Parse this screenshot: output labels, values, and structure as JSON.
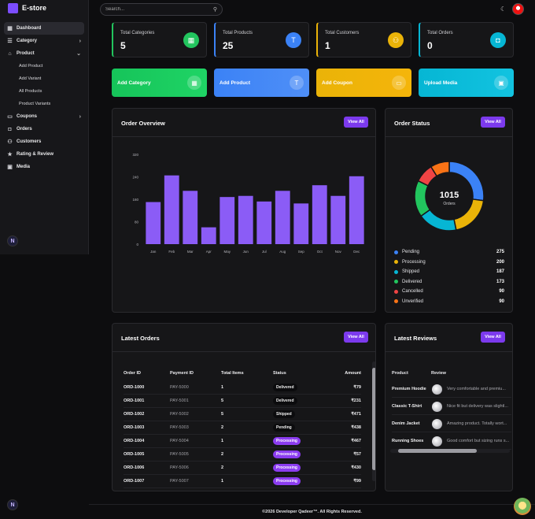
{
  "app": {
    "brand": "E-store"
  },
  "header": {
    "search_placeholder": "Search..."
  },
  "sidebar": {
    "items": [
      {
        "label": "Dashboard",
        "icon": "grid-icon",
        "active": true
      },
      {
        "label": "Category",
        "icon": "list-icon",
        "chevron": ">"
      },
      {
        "label": "Product",
        "icon": "tag-icon",
        "chevron": "v"
      },
      {
        "label": "Coupons",
        "icon": "ticket-icon",
        "chevron": ">"
      },
      {
        "label": "Orders",
        "icon": "bag-icon"
      },
      {
        "label": "Customers",
        "icon": "user-icon"
      },
      {
        "label": "Rating & Review",
        "icon": "star-icon"
      },
      {
        "label": "Media",
        "icon": "image-icon"
      }
    ],
    "product_sub": [
      "Add Product",
      "Add Variant",
      "All Products",
      "Product Variants"
    ],
    "avatar_letter": "N"
  },
  "stats": [
    {
      "label": "Total Categories",
      "value": "5",
      "color": "#22c55e",
      "icon": "grid-icon"
    },
    {
      "label": "Total Products",
      "value": "25",
      "color": "#3b82f6",
      "icon": "shirt-icon"
    },
    {
      "label": "Total Customers",
      "value": "1",
      "color": "#eab308",
      "icon": "user-icon"
    },
    {
      "label": "Total Orders",
      "value": "0",
      "color": "#06b6d4",
      "icon": "bag-icon"
    }
  ],
  "actions": [
    {
      "label": "Add Category",
      "color_from": "#16c45a",
      "color_to": "#1fd465",
      "icon": "grid-icon"
    },
    {
      "label": "Add Product",
      "color_from": "#3b82f6",
      "color_to": "#4f8ff7",
      "icon": "shirt-icon"
    },
    {
      "label": "Add Coupon",
      "color_from": "#eab308",
      "color_to": "#f5b50a",
      "icon": "ticket-icon"
    },
    {
      "label": "Upload Media",
      "color_from": "#06b6d4",
      "color_to": "#12c3e0",
      "icon": "image-icon"
    }
  ],
  "order_overview": {
    "title": "Order Overview",
    "button": "View All",
    "chart_data": {
      "type": "bar",
      "categories": [
        "Jan",
        "Feb",
        "Mar",
        "Apr",
        "May",
        "Jun",
        "Jul",
        "Aug",
        "Sep",
        "Oct",
        "Nov",
        "Dec"
      ],
      "values": [
        150,
        245,
        190,
        60,
        168,
        172,
        152,
        190,
        145,
        210,
        172,
        242
      ],
      "yticks": [
        "0",
        "80",
        "160",
        "240",
        "320"
      ],
      "ylim": [
        0,
        320
      ],
      "color": "#8b5cf6"
    }
  },
  "order_status": {
    "title": "Order Status",
    "button": "View All",
    "total": "1015",
    "total_label": "Orders",
    "chart_data": {
      "type": "pie",
      "categories": [
        "Pending",
        "Processing",
        "Shipped",
        "Delivered",
        "Cancelled",
        "Unverified"
      ],
      "values": [
        275,
        200,
        187,
        173,
        90,
        90
      ],
      "colors": [
        "#3b82f6",
        "#eab308",
        "#06b6d4",
        "#22c55e",
        "#ef4444",
        "#f97316"
      ]
    }
  },
  "latest_orders": {
    "title": "Latest Orders",
    "button": "View All",
    "headers": [
      "Order ID",
      "Payment ID",
      "Total Items",
      "Status",
      "Amount"
    ],
    "rows": [
      {
        "id": "ORD-1000",
        "pay": "PAY-5000",
        "items": "1",
        "status": "Delivered",
        "style": "dark",
        "amount": "₹79"
      },
      {
        "id": "ORD-1001",
        "pay": "PAY-5001",
        "items": "5",
        "status": "Delivered",
        "style": "dark",
        "amount": "₹231"
      },
      {
        "id": "ORD-1002",
        "pay": "PAY-5002",
        "items": "5",
        "status": "Shipped",
        "style": "dark",
        "amount": "₹471"
      },
      {
        "id": "ORD-1003",
        "pay": "PAY-5003",
        "items": "2",
        "status": "Pending",
        "style": "dark",
        "amount": "₹438"
      },
      {
        "id": "ORD-1004",
        "pay": "PAY-5004",
        "items": "1",
        "status": "Processing",
        "style": "purple",
        "amount": "₹467"
      },
      {
        "id": "ORD-1005",
        "pay": "PAY-5005",
        "items": "2",
        "status": "Processing",
        "style": "purple",
        "amount": "₹57"
      },
      {
        "id": "ORD-1006",
        "pay": "PAY-5006",
        "items": "2",
        "status": "Processing",
        "style": "purple",
        "amount": "₹430"
      },
      {
        "id": "ORD-1007",
        "pay": "PAY-5007",
        "items": "1",
        "status": "Processing",
        "style": "purple",
        "amount": "₹99"
      }
    ]
  },
  "latest_reviews": {
    "title": "Latest Reviews",
    "button": "View All",
    "headers": [
      "Product",
      "Review"
    ],
    "rows": [
      {
        "product": "Premium Hoodie",
        "review": "Very comfortable and premiu..."
      },
      {
        "product": "Classic T-Shirt",
        "review": "Nice fit but delivery was slightl..."
      },
      {
        "product": "Denim Jacket",
        "review": "Amazing product. Totally wort..."
      },
      {
        "product": "Running Shoes",
        "review": "Good comfort but sizing runs s..."
      }
    ]
  },
  "footer": {
    "text": "©2026 Developer Qadeer™. All Rights Reserved."
  }
}
